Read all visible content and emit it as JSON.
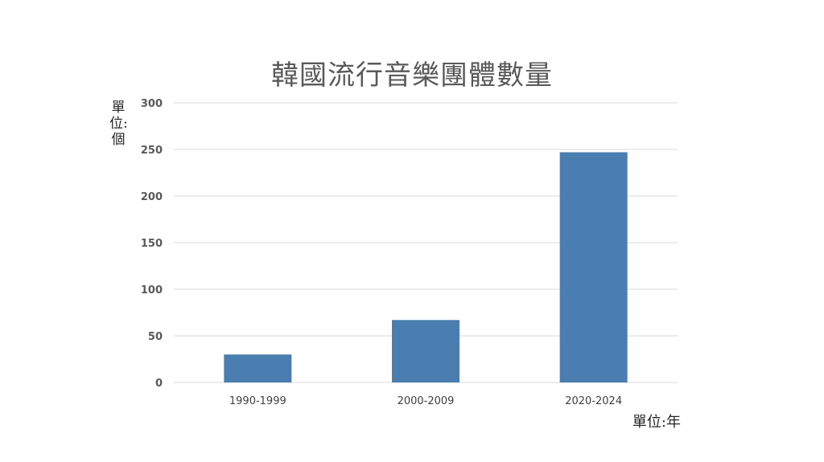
{
  "chart_data": {
    "type": "bar",
    "title": "韓國流行音樂團體數量",
    "ylabel": "單位:個",
    "xlabel": "單位:年",
    "categories": [
      "1990-1999",
      "2000-2009",
      "2020-2024"
    ],
    "values": [
      30,
      67,
      247
    ],
    "ylim": [
      0,
      300
    ],
    "yticks": [
      0,
      50,
      100,
      150,
      200,
      250,
      300
    ],
    "grid": true,
    "legend": "none",
    "colors": {
      "bar": "#4a7eb0",
      "grid": "#d9d9d9",
      "axis": "#d9d9d9"
    }
  }
}
